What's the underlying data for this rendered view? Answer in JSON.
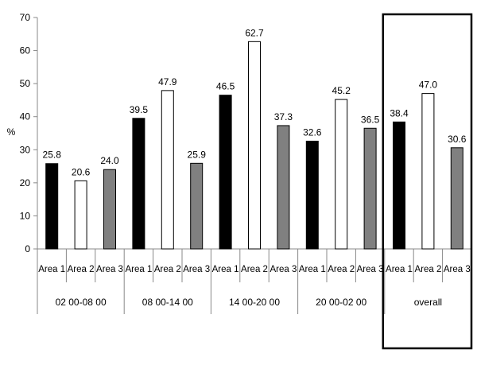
{
  "chart_data": {
    "type": "bar",
    "ylabel": "%",
    "ylim": [
      0,
      70
    ],
    "yticks": [
      0,
      10,
      20,
      30,
      40,
      50,
      60,
      70
    ],
    "grid": false,
    "groups": [
      {
        "label": "02 00-08 00",
        "highlighted": false
      },
      {
        "label": "08 00-14 00",
        "highlighted": false
      },
      {
        "label": "14 00-20 00",
        "highlighted": false
      },
      {
        "label": "20 00-02 00",
        "highlighted": false
      },
      {
        "label": "overall",
        "highlighted": true
      }
    ],
    "series": [
      {
        "name": "Area 1",
        "color": "#000000",
        "values": [
          25.8,
          39.5,
          46.5,
          32.6,
          38.4
        ]
      },
      {
        "name": "Area 2",
        "color": "#ffffff",
        "values": [
          20.6,
          47.9,
          62.7,
          45.2,
          47.0
        ]
      },
      {
        "name": "Area 3",
        "color": "#808080",
        "values": [
          24.0,
          25.9,
          37.3,
          36.5,
          30.6
        ]
      }
    ],
    "data_labels": [
      [
        "25.8",
        "20.6",
        "24.0"
      ],
      [
        "39.5",
        "47.9",
        "25.9"
      ],
      [
        "46.5",
        "62.7",
        "37.3"
      ],
      [
        "32.6",
        "45.2",
        "36.5"
      ],
      [
        "38.4",
        "47.0",
        "30.6"
      ]
    ]
  }
}
